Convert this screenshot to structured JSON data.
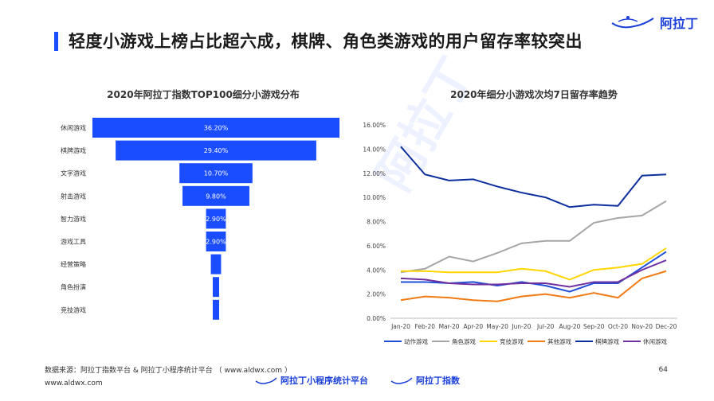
{
  "header": {
    "title": "轻度小游戏上榜占比超六成，棋牌、角色类游戏的用户留存率较突出",
    "logo_text": "阿拉丁"
  },
  "chart_data": [
    {
      "type": "bar",
      "title": "2020年阿拉丁指数TOP100细分小游戏分布",
      "categories": [
        "休闲游戏",
        "棋牌游戏",
        "文字游戏",
        "射击游戏",
        "智力游戏",
        "游戏工具",
        "经营策略",
        "角色扮演",
        "竞技游戏"
      ],
      "values": [
        36.2,
        29.4,
        10.7,
        9.8,
        2.9,
        2.9,
        1.5,
        0.7,
        0.7
      ],
      "labels": [
        "36.20%",
        "29.40%",
        "10.70%",
        "9.80%",
        "2.90%",
        "2.90%",
        "",
        "",
        ""
      ],
      "color": "#1a4dff"
    },
    {
      "type": "line",
      "title": "2020年细分小游戏次均7日留存率趋势",
      "x": [
        "Jan-20",
        "Feb-20",
        "Mar-20",
        "Apr-20",
        "May-20",
        "Jun-20",
        "Jul-20",
        "Aug-20",
        "Sep-20",
        "Oct-20",
        "Nov-20",
        "Dec-20"
      ],
      "yticks": [
        "0.00%",
        "2.00%",
        "4.00%",
        "6.00%",
        "8.00%",
        "10.00%",
        "12.00%",
        "14.00%",
        "16.00%"
      ],
      "ylim": [
        0,
        16
      ],
      "series": [
        {
          "name": "动作游戏",
          "color": "#1f4fd6",
          "values": [
            3.0,
            3.0,
            2.9,
            3.0,
            2.7,
            3.0,
            2.7,
            2.2,
            2.9,
            2.9,
            4.2,
            5.5
          ]
        },
        {
          "name": "角色游戏",
          "color": "#a6a6a6",
          "values": [
            3.8,
            4.1,
            5.1,
            4.7,
            5.4,
            6.2,
            6.4,
            6.4,
            7.9,
            8.3,
            8.5,
            9.7
          ]
        },
        {
          "name": "竞技游戏",
          "color": "#ffd600",
          "values": [
            3.9,
            3.9,
            3.8,
            3.8,
            3.8,
            4.1,
            3.9,
            3.2,
            4.0,
            4.2,
            4.5,
            5.8
          ]
        },
        {
          "name": "其他游戏",
          "color": "#f07b14",
          "values": [
            1.5,
            1.8,
            1.7,
            1.5,
            1.4,
            1.8,
            2.0,
            1.7,
            2.1,
            1.7,
            3.3,
            3.9
          ]
        },
        {
          "name": "棋牌游戏",
          "color": "#0d2f9e",
          "values": [
            14.2,
            11.9,
            11.4,
            11.5,
            10.9,
            10.4,
            10.0,
            9.2,
            9.4,
            9.3,
            11.8,
            11.9
          ]
        },
        {
          "name": "休闲游戏",
          "color": "#7030a0",
          "values": [
            3.3,
            3.2,
            2.9,
            2.8,
            2.8,
            2.9,
            2.9,
            2.6,
            3.0,
            3.0,
            4.0,
            4.8
          ]
        }
      ]
    }
  ],
  "footer": {
    "source": "数据来源：阿拉丁指数平台 & 阿拉丁小程序统计平台 （ www.aldwx.com ）",
    "site": "www.aldwx.com",
    "page": "64",
    "logo1": "阿拉丁小程序统计平台",
    "logo2": "阿拉丁指数"
  },
  "watermark": "阿拉丁"
}
